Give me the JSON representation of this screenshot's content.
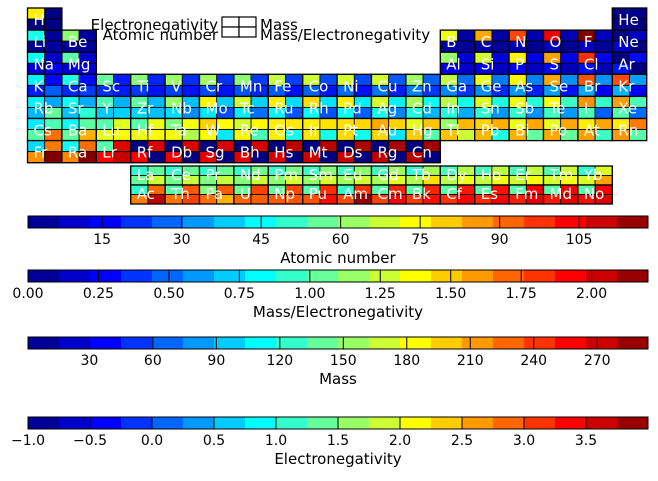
{
  "chart_data": {
    "type": "heatmap",
    "description_encoding": "Each element cell is split into four quadrants colored by: top-left=Electronegativity, top-right=Mass, bottom-left=Atomic number, bottom-right=Mass/Electronegativity (jet colormap).",
    "legend": {
      "top_left": "Electronegativity",
      "top_right": "Mass",
      "bottom_left": "Atomic number",
      "bottom_right": "Mass/Electronegativity"
    },
    "colormap": "jet",
    "elements": [
      {
        "sym": "H",
        "z": 1,
        "row": 1,
        "col": 1,
        "mass": 1.008,
        "en": 2.2
      },
      {
        "sym": "He",
        "z": 2,
        "row": 1,
        "col": 18,
        "mass": 4.003,
        "en": -1
      },
      {
        "sym": "Li",
        "z": 3,
        "row": 2,
        "col": 1,
        "mass": 6.94,
        "en": 0.98
      },
      {
        "sym": "Be",
        "z": 4,
        "row": 2,
        "col": 2,
        "mass": 9.012,
        "en": 1.57
      },
      {
        "sym": "B",
        "z": 5,
        "row": 2,
        "col": 13,
        "mass": 10.81,
        "en": 2.04
      },
      {
        "sym": "C",
        "z": 6,
        "row": 2,
        "col": 14,
        "mass": 12.011,
        "en": 2.55
      },
      {
        "sym": "N",
        "z": 7,
        "row": 2,
        "col": 15,
        "mass": 14.007,
        "en": 3.04
      },
      {
        "sym": "O",
        "z": 8,
        "row": 2,
        "col": 16,
        "mass": 15.999,
        "en": 3.44
      },
      {
        "sym": "F",
        "z": 9,
        "row": 2,
        "col": 17,
        "mass": 18.998,
        "en": 3.98
      },
      {
        "sym": "Ne",
        "z": 10,
        "row": 2,
        "col": 18,
        "mass": 20.18,
        "en": -1
      },
      {
        "sym": "Na",
        "z": 11,
        "row": 3,
        "col": 1,
        "mass": 22.99,
        "en": 0.93
      },
      {
        "sym": "Mg",
        "z": 12,
        "row": 3,
        "col": 2,
        "mass": 24.305,
        "en": 1.31
      },
      {
        "sym": "Al",
        "z": 13,
        "row": 3,
        "col": 13,
        "mass": 26.982,
        "en": 1.61
      },
      {
        "sym": "Si",
        "z": 14,
        "row": 3,
        "col": 14,
        "mass": 28.085,
        "en": 1.9
      },
      {
        "sym": "P",
        "z": 15,
        "row": 3,
        "col": 15,
        "mass": 30.974,
        "en": 2.19
      },
      {
        "sym": "S",
        "z": 16,
        "row": 3,
        "col": 16,
        "mass": 32.06,
        "en": 2.58
      },
      {
        "sym": "Cl",
        "z": 17,
        "row": 3,
        "col": 17,
        "mass": 35.45,
        "en": 3.16
      },
      {
        "sym": "Ar",
        "z": 18,
        "row": 3,
        "col": 18,
        "mass": 39.948,
        "en": -1
      },
      {
        "sym": "K",
        "z": 19,
        "row": 4,
        "col": 1,
        "mass": 39.098,
        "en": 0.82
      },
      {
        "sym": "Ca",
        "z": 20,
        "row": 4,
        "col": 2,
        "mass": 40.078,
        "en": 1.0
      },
      {
        "sym": "Sc",
        "z": 21,
        "row": 4,
        "col": 3,
        "mass": 44.956,
        "en": 1.36
      },
      {
        "sym": "Ti",
        "z": 22,
        "row": 4,
        "col": 4,
        "mass": 47.867,
        "en": 1.54
      },
      {
        "sym": "V",
        "z": 23,
        "row": 4,
        "col": 5,
        "mass": 50.942,
        "en": 1.63
      },
      {
        "sym": "Cr",
        "z": 24,
        "row": 4,
        "col": 6,
        "mass": 51.996,
        "en": 1.66
      },
      {
        "sym": "Mn",
        "z": 25,
        "row": 4,
        "col": 7,
        "mass": 54.938,
        "en": 1.55
      },
      {
        "sym": "Fe",
        "z": 26,
        "row": 4,
        "col": 8,
        "mass": 55.845,
        "en": 1.83
      },
      {
        "sym": "Co",
        "z": 27,
        "row": 4,
        "col": 9,
        "mass": 58.933,
        "en": 1.88
      },
      {
        "sym": "Ni",
        "z": 28,
        "row": 4,
        "col": 10,
        "mass": 58.693,
        "en": 1.91
      },
      {
        "sym": "Cu",
        "z": 29,
        "row": 4,
        "col": 11,
        "mass": 63.546,
        "en": 1.9
      },
      {
        "sym": "Zn",
        "z": 30,
        "row": 4,
        "col": 12,
        "mass": 65.38,
        "en": 1.65
      },
      {
        "sym": "Ga",
        "z": 31,
        "row": 4,
        "col": 13,
        "mass": 69.723,
        "en": 1.81
      },
      {
        "sym": "Ge",
        "z": 32,
        "row": 4,
        "col": 14,
        "mass": 72.63,
        "en": 2.01
      },
      {
        "sym": "As",
        "z": 33,
        "row": 4,
        "col": 15,
        "mass": 74.922,
        "en": 2.18
      },
      {
        "sym": "Se",
        "z": 34,
        "row": 4,
        "col": 16,
        "mass": 78.971,
        "en": 2.55
      },
      {
        "sym": "Br",
        "z": 35,
        "row": 4,
        "col": 17,
        "mass": 79.904,
        "en": 2.96
      },
      {
        "sym": "Kr",
        "z": 36,
        "row": 4,
        "col": 18,
        "mass": 83.798,
        "en": 3.0
      },
      {
        "sym": "Rb",
        "z": 37,
        "row": 5,
        "col": 1,
        "mass": 85.468,
        "en": 0.82
      },
      {
        "sym": "Sr",
        "z": 38,
        "row": 5,
        "col": 2,
        "mass": 87.62,
        "en": 0.95
      },
      {
        "sym": "Y",
        "z": 39,
        "row": 5,
        "col": 3,
        "mass": 88.906,
        "en": 1.22
      },
      {
        "sym": "Zr",
        "z": 40,
        "row": 5,
        "col": 4,
        "mass": 91.224,
        "en": 1.33
      },
      {
        "sym": "Nb",
        "z": 41,
        "row": 5,
        "col": 5,
        "mass": 92.906,
        "en": 1.6
      },
      {
        "sym": "Mo",
        "z": 42,
        "row": 5,
        "col": 6,
        "mass": 95.95,
        "en": 2.16
      },
      {
        "sym": "Tc",
        "z": 43,
        "row": 5,
        "col": 7,
        "mass": 98,
        "en": 1.9
      },
      {
        "sym": "Ru",
        "z": 44,
        "row": 5,
        "col": 8,
        "mass": 101.07,
        "en": 2.2
      },
      {
        "sym": "Rh",
        "z": 45,
        "row": 5,
        "col": 9,
        "mass": 102.91,
        "en": 2.28
      },
      {
        "sym": "Pd",
        "z": 46,
        "row": 5,
        "col": 10,
        "mass": 106.42,
        "en": 2.2
      },
      {
        "sym": "Ag",
        "z": 47,
        "row": 5,
        "col": 11,
        "mass": 107.87,
        "en": 1.93
      },
      {
        "sym": "Cd",
        "z": 48,
        "row": 5,
        "col": 12,
        "mass": 112.41,
        "en": 1.69
      },
      {
        "sym": "In",
        "z": 49,
        "row": 5,
        "col": 13,
        "mass": 114.82,
        "en": 1.78
      },
      {
        "sym": "Sn",
        "z": 50,
        "row": 5,
        "col": 14,
        "mass": 118.71,
        "en": 1.96
      },
      {
        "sym": "Sb",
        "z": 51,
        "row": 5,
        "col": 15,
        "mass": 121.76,
        "en": 2.05
      },
      {
        "sym": "Te",
        "z": 52,
        "row": 5,
        "col": 16,
        "mass": 127.6,
        "en": 2.1
      },
      {
        "sym": "I",
        "z": 53,
        "row": 5,
        "col": 17,
        "mass": 126.9,
        "en": 2.66
      },
      {
        "sym": "Xe",
        "z": 54,
        "row": 5,
        "col": 18,
        "mass": 131.29,
        "en": 2.6
      },
      {
        "sym": "Cs",
        "z": 55,
        "row": 6,
        "col": 1,
        "mass": 132.91,
        "en": 0.79
      },
      {
        "sym": "Ba",
        "z": 56,
        "row": 6,
        "col": 2,
        "mass": 137.33,
        "en": 0.89
      },
      {
        "sym": "Lu",
        "z": 71,
        "row": 6,
        "col": 3,
        "mass": 174.97,
        "en": 1.27
      },
      {
        "sym": "Hf",
        "z": 72,
        "row": 6,
        "col": 4,
        "mass": 178.49,
        "en": 1.3
      },
      {
        "sym": "Ta",
        "z": 73,
        "row": 6,
        "col": 5,
        "mass": 180.95,
        "en": 1.5
      },
      {
        "sym": "W",
        "z": 74,
        "row": 6,
        "col": 6,
        "mass": 183.84,
        "en": 2.36
      },
      {
        "sym": "Re",
        "z": 75,
        "row": 6,
        "col": 7,
        "mass": 186.21,
        "en": 1.9
      },
      {
        "sym": "Os",
        "z": 76,
        "row": 6,
        "col": 8,
        "mass": 190.23,
        "en": 2.2
      },
      {
        "sym": "Ir",
        "z": 77,
        "row": 6,
        "col": 9,
        "mass": 192.22,
        "en": 2.2
      },
      {
        "sym": "Pt",
        "z": 78,
        "row": 6,
        "col": 10,
        "mass": 195.08,
        "en": 2.28
      },
      {
        "sym": "Au",
        "z": 79,
        "row": 6,
        "col": 11,
        "mass": 196.97,
        "en": 2.54
      },
      {
        "sym": "Hg",
        "z": 80,
        "row": 6,
        "col": 12,
        "mass": 200.59,
        "en": 2.0
      },
      {
        "sym": "Tl",
        "z": 81,
        "row": 6,
        "col": 13,
        "mass": 204.38,
        "en": 1.62
      },
      {
        "sym": "Pb",
        "z": 82,
        "row": 6,
        "col": 14,
        "mass": 207.2,
        "en": 2.33
      },
      {
        "sym": "Bi",
        "z": 83,
        "row": 6,
        "col": 15,
        "mass": 208.98,
        "en": 2.02
      },
      {
        "sym": "Po",
        "z": 84,
        "row": 6,
        "col": 16,
        "mass": 209,
        "en": 2.0
      },
      {
        "sym": "At",
        "z": 85,
        "row": 6,
        "col": 17,
        "mass": 210,
        "en": 2.2
      },
      {
        "sym": "Rn",
        "z": 86,
        "row": 6,
        "col": 18,
        "mass": 222,
        "en": 2.2
      },
      {
        "sym": "Fr",
        "z": 87,
        "row": 7,
        "col": 1,
        "mass": 223,
        "en": 0.7
      },
      {
        "sym": "Ra",
        "z": 88,
        "row": 7,
        "col": 2,
        "mass": 226,
        "en": 0.9
      },
      {
        "sym": "Lr",
        "z": 103,
        "row": 7,
        "col": 3,
        "mass": 266,
        "en": 1.3
      },
      {
        "sym": "Rf",
        "z": 104,
        "row": 7,
        "col": 4,
        "mass": 267,
        "en": -1
      },
      {
        "sym": "Db",
        "z": 105,
        "row": 7,
        "col": 5,
        "mass": 268,
        "en": -1
      },
      {
        "sym": "Sg",
        "z": 106,
        "row": 7,
        "col": 6,
        "mass": 269,
        "en": -1
      },
      {
        "sym": "Bh",
        "z": 107,
        "row": 7,
        "col": 7,
        "mass": 270,
        "en": -1
      },
      {
        "sym": "Hs",
        "z": 108,
        "row": 7,
        "col": 8,
        "mass": 277,
        "en": -1
      },
      {
        "sym": "Mt",
        "z": 109,
        "row": 7,
        "col": 9,
        "mass": 278,
        "en": -1
      },
      {
        "sym": "Ds",
        "z": 110,
        "row": 7,
        "col": 10,
        "mass": 281,
        "en": -1
      },
      {
        "sym": "Rg",
        "z": 111,
        "row": 7,
        "col": 11,
        "mass": 282,
        "en": -1
      },
      {
        "sym": "Cn",
        "z": 112,
        "row": 7,
        "col": 12,
        "mass": 285,
        "en": -1
      },
      {
        "sym": "La",
        "z": 57,
        "row": 9,
        "col": 4,
        "mass": 138.91,
        "en": 1.1
      },
      {
        "sym": "Ce",
        "z": 58,
        "row": 9,
        "col": 5,
        "mass": 140.12,
        "en": 1.12
      },
      {
        "sym": "Pr",
        "z": 59,
        "row": 9,
        "col": 6,
        "mass": 140.91,
        "en": 1.13
      },
      {
        "sym": "Nd",
        "z": 60,
        "row": 9,
        "col": 7,
        "mass": 144.24,
        "en": 1.14
      },
      {
        "sym": "Pm",
        "z": 61,
        "row": 9,
        "col": 8,
        "mass": 145,
        "en": 1.13
      },
      {
        "sym": "Sm",
        "z": 62,
        "row": 9,
        "col": 9,
        "mass": 150.36,
        "en": 1.17
      },
      {
        "sym": "Eu",
        "z": 63,
        "row": 9,
        "col": 10,
        "mass": 151.96,
        "en": 1.2
      },
      {
        "sym": "Gd",
        "z": 64,
        "row": 9,
        "col": 11,
        "mass": 157.25,
        "en": 1.2
      },
      {
        "sym": "Tb",
        "z": 65,
        "row": 9,
        "col": 12,
        "mass": 158.93,
        "en": 1.1
      },
      {
        "sym": "Dy",
        "z": 66,
        "row": 9,
        "col": 13,
        "mass": 162.5,
        "en": 1.22
      },
      {
        "sym": "Ho",
        "z": 67,
        "row": 9,
        "col": 14,
        "mass": 164.93,
        "en": 1.23
      },
      {
        "sym": "Er",
        "z": 68,
        "row": 9,
        "col": 15,
        "mass": 167.26,
        "en": 1.24
      },
      {
        "sym": "Tm",
        "z": 69,
        "row": 9,
        "col": 16,
        "mass": 168.93,
        "en": 1.25
      },
      {
        "sym": "Yb",
        "z": 70,
        "row": 9,
        "col": 17,
        "mass": 173.05,
        "en": 1.1
      },
      {
        "sym": "Ac",
        "z": 89,
        "row": 10,
        "col": 4,
        "mass": 227,
        "en": 1.1
      },
      {
        "sym": "Th",
        "z": 90,
        "row": 10,
        "col": 5,
        "mass": 232.04,
        "en": 1.3
      },
      {
        "sym": "Pa",
        "z": 91,
        "row": 10,
        "col": 6,
        "mass": 231.04,
        "en": 1.5
      },
      {
        "sym": "U",
        "z": 92,
        "row": 10,
        "col": 7,
        "mass": 238.03,
        "en": 1.38
      },
      {
        "sym": "Np",
        "z": 93,
        "row": 10,
        "col": 8,
        "mass": 237,
        "en": 1.36
      },
      {
        "sym": "Pu",
        "z": 94,
        "row": 10,
        "col": 9,
        "mass": 244,
        "en": 1.28
      },
      {
        "sym": "Am",
        "z": 95,
        "row": 10,
        "col": 10,
        "mass": 243,
        "en": 1.13
      },
      {
        "sym": "Cm",
        "z": 96,
        "row": 10,
        "col": 11,
        "mass": 247,
        "en": 1.28
      },
      {
        "sym": "Bk",
        "z": 97,
        "row": 10,
        "col": 12,
        "mass": 247,
        "en": 1.3
      },
      {
        "sym": "Cf",
        "z": 98,
        "row": 10,
        "col": 13,
        "mass": 251,
        "en": 1.3
      },
      {
        "sym": "Es",
        "z": 99,
        "row": 10,
        "col": 14,
        "mass": 252,
        "en": 1.3
      },
      {
        "sym": "Fm",
        "z": 100,
        "row": 10,
        "col": 15,
        "mass": 257,
        "en": 1.3
      },
      {
        "sym": "Md",
        "z": 101,
        "row": 10,
        "col": 16,
        "mass": 258,
        "en": 1.3
      },
      {
        "sym": "No",
        "z": 102,
        "row": 10,
        "col": 17,
        "mass": 259,
        "en": 1.3
      }
    ],
    "colorbars": [
      {
        "label": "Atomic number",
        "key": "z",
        "range": [
          1,
          118
        ],
        "ticks": [
          15,
          30,
          45,
          60,
          75,
          90,
          105
        ],
        "tick_labels": [
          "15",
          "30",
          "45",
          "60",
          "75",
          "90",
          "105"
        ]
      },
      {
        "label": "Mass/Electronegativity",
        "key": "ratio",
        "range": [
          0.0,
          2.2
        ],
        "ticks": [
          0.0,
          0.25,
          0.5,
          0.75,
          1.0,
          1.25,
          1.5,
          1.75,
          2.0
        ],
        "tick_labels": [
          "0.00",
          "0.25",
          "0.50",
          "0.75",
          "1.00",
          "1.25",
          "1.50",
          "1.75",
          "2.00"
        ]
      },
      {
        "label": "Mass",
        "key": "mass",
        "range": [
          1,
          294
        ],
        "ticks": [
          30,
          60,
          90,
          120,
          150,
          180,
          210,
          240,
          270
        ],
        "tick_labels": [
          "30",
          "60",
          "90",
          "120",
          "150",
          "180",
          "210",
          "240",
          "270"
        ]
      },
      {
        "label": "Electronegativity",
        "key": "en",
        "range": [
          -1.0,
          4.0
        ],
        "ticks": [
          -1.0,
          -0.5,
          0.0,
          0.5,
          1.0,
          1.5,
          2.0,
          2.5,
          3.0,
          3.5
        ],
        "tick_labels": [
          "−1.0",
          "−0.5",
          "0.0",
          "0.5",
          "1.0",
          "1.5",
          "2.0",
          "2.5",
          "3.0",
          "3.5"
        ]
      }
    ]
  }
}
